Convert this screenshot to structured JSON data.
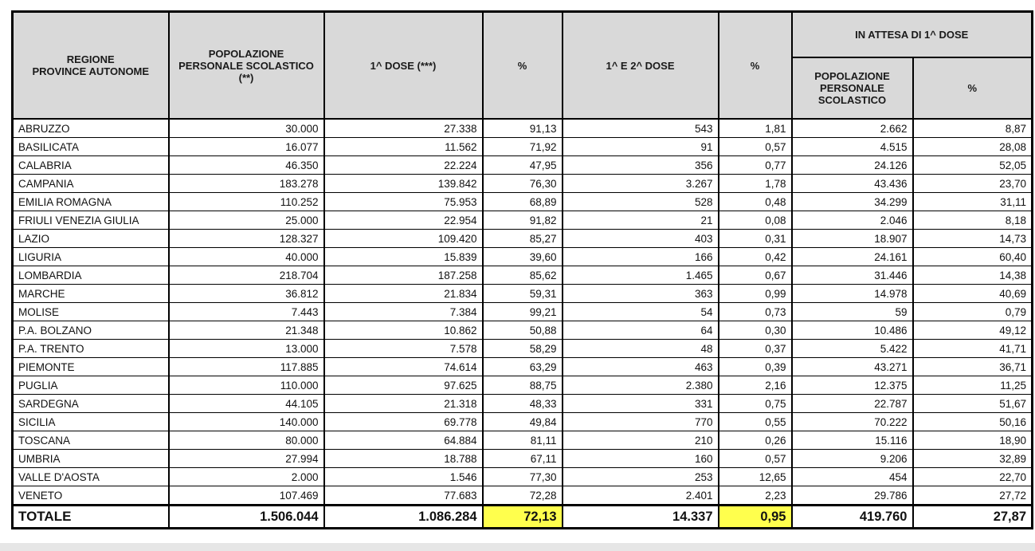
{
  "colors": {
    "header_bg": "#D9D9D9",
    "highlight": "#FFFF4D",
    "border": "#000000",
    "footer_strip": "#E6E6E6"
  },
  "table": {
    "header": {
      "region": "REGIONE\nPROVINCE AUTONOME",
      "population": "POPOLAZIONE\nPERSONALE SCOLASTICO\n(**)",
      "first_dose": "1^ DOSE (***)",
      "pct_first": "%",
      "first_second_dose": "1^ E 2^ DOSE",
      "pct_first_second": "%",
      "waiting_group": "IN ATTESA DI 1^ DOSE",
      "waiting_population": "POPOLAZIONE\nPERSONALE\nSCOLASTICO",
      "waiting_pct": "%"
    },
    "rows": [
      {
        "region": "ABRUZZO",
        "values": [
          "30.000",
          "27.338",
          "91,13",
          "543",
          "1,81",
          "2.662",
          "8,87"
        ]
      },
      {
        "region": "BASILICATA",
        "values": [
          "16.077",
          "11.562",
          "71,92",
          "91",
          "0,57",
          "4.515",
          "28,08"
        ]
      },
      {
        "region": "CALABRIA",
        "values": [
          "46.350",
          "22.224",
          "47,95",
          "356",
          "0,77",
          "24.126",
          "52,05"
        ]
      },
      {
        "region": "CAMPANIA",
        "values": [
          "183.278",
          "139.842",
          "76,30",
          "3.267",
          "1,78",
          "43.436",
          "23,70"
        ]
      },
      {
        "region": "EMILIA ROMAGNA",
        "values": [
          "110.252",
          "75.953",
          "68,89",
          "528",
          "0,48",
          "34.299",
          "31,11"
        ]
      },
      {
        "region": "FRIULI VENEZIA GIULIA",
        "values": [
          "25.000",
          "22.954",
          "91,82",
          "21",
          "0,08",
          "2.046",
          "8,18"
        ]
      },
      {
        "region": "LAZIO",
        "values": [
          "128.327",
          "109.420",
          "85,27",
          "403",
          "0,31",
          "18.907",
          "14,73"
        ]
      },
      {
        "region": "LIGURIA",
        "values": [
          "40.000",
          "15.839",
          "39,60",
          "166",
          "0,42",
          "24.161",
          "60,40"
        ]
      },
      {
        "region": "LOMBARDIA",
        "values": [
          "218.704",
          "187.258",
          "85,62",
          "1.465",
          "0,67",
          "31.446",
          "14,38"
        ]
      },
      {
        "region": "MARCHE",
        "values": [
          "36.812",
          "21.834",
          "59,31",
          "363",
          "0,99",
          "14.978",
          "40,69"
        ]
      },
      {
        "region": "MOLISE",
        "values": [
          "7.443",
          "7.384",
          "99,21",
          "54",
          "0,73",
          "59",
          "0,79"
        ]
      },
      {
        "region": "P.A. BOLZANO",
        "values": [
          "21.348",
          "10.862",
          "50,88",
          "64",
          "0,30",
          "10.486",
          "49,12"
        ]
      },
      {
        "region": "P.A. TRENTO",
        "values": [
          "13.000",
          "7.578",
          "58,29",
          "48",
          "0,37",
          "5.422",
          "41,71"
        ]
      },
      {
        "region": "PIEMONTE",
        "values": [
          "117.885",
          "74.614",
          "63,29",
          "463",
          "0,39",
          "43.271",
          "36,71"
        ]
      },
      {
        "region": "PUGLIA",
        "values": [
          "110.000",
          "97.625",
          "88,75",
          "2.380",
          "2,16",
          "12.375",
          "11,25"
        ]
      },
      {
        "region": "SARDEGNA",
        "values": [
          "44.105",
          "21.318",
          "48,33",
          "331",
          "0,75",
          "22.787",
          "51,67"
        ]
      },
      {
        "region": "SICILIA",
        "values": [
          "140.000",
          "69.778",
          "49,84",
          "770",
          "0,55",
          "70.222",
          "50,16"
        ]
      },
      {
        "region": "TOSCANA",
        "values": [
          "80.000",
          "64.884",
          "81,11",
          "210",
          "0,26",
          "15.116",
          "18,90"
        ]
      },
      {
        "region": "UMBRIA",
        "values": [
          "27.994",
          "18.788",
          "67,11",
          "160",
          "0,57",
          "9.206",
          "32,89"
        ]
      },
      {
        "region": "VALLE D'AOSTA",
        "values": [
          "2.000",
          "1.546",
          "77,30",
          "253",
          "12,65",
          "454",
          "22,70"
        ]
      },
      {
        "region": "VENETO",
        "values": [
          "107.469",
          "77.683",
          "72,28",
          "2.401",
          "2,23",
          "29.786",
          "27,72"
        ]
      }
    ],
    "total": {
      "label": "TOTALE",
      "values": [
        "1.506.044",
        "1.086.284",
        "72,13",
        "14.337",
        "0,95",
        "419.760",
        "27,87"
      ],
      "highlighted_value_indexes": [
        2,
        4
      ]
    }
  }
}
